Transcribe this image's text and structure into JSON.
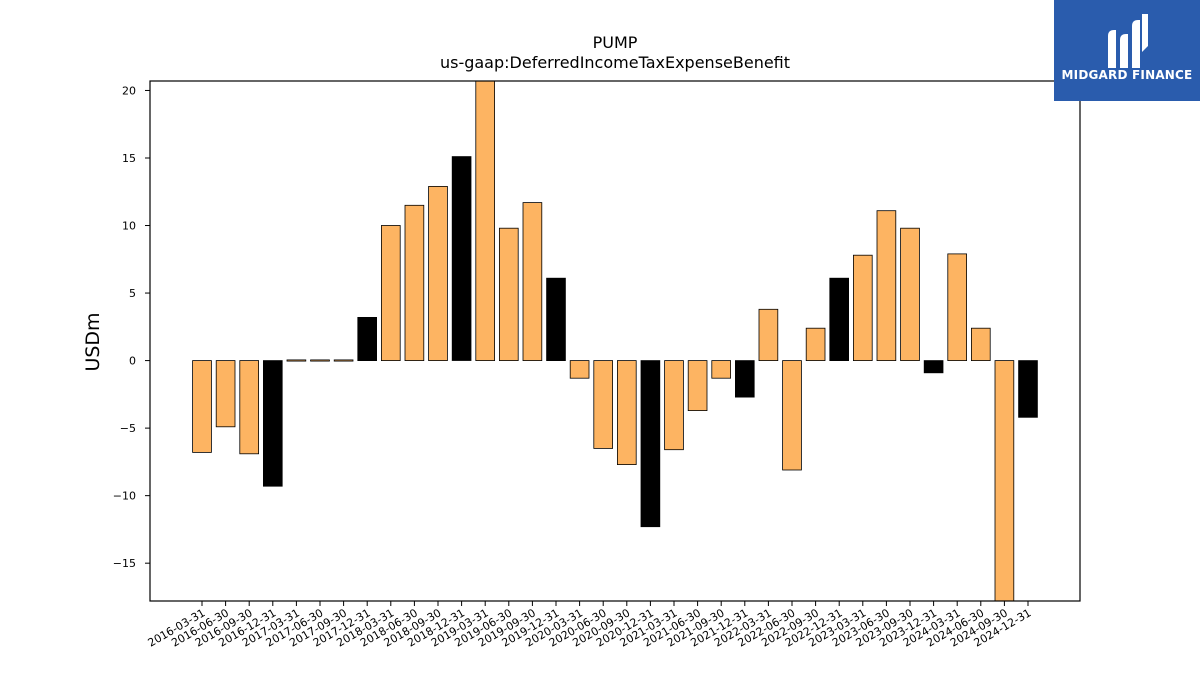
{
  "chart_data": {
    "type": "bar",
    "title": "PUMP",
    "subtitle": "us-gaap:DeferredIncomeTaxExpenseBenefit",
    "ylabel": "USDm",
    "xlabel": "",
    "ylim": [
      -17.8,
      20.7
    ],
    "yticks": [
      -15,
      -10,
      -5,
      0,
      5,
      10,
      15,
      20
    ],
    "categories": [
      "2016-03-31",
      "2016-06-30",
      "2016-09-30",
      "2016-12-31",
      "2017-03-31",
      "2017-06-30",
      "2017-09-30",
      "2017-12-31",
      "2018-03-31",
      "2018-06-30",
      "2018-09-30",
      "2018-12-31",
      "2019-03-31",
      "2019-06-30",
      "2019-09-30",
      "2019-12-31",
      "2020-03-31",
      "2020-06-30",
      "2020-09-30",
      "2020-12-31",
      "2021-03-31",
      "2021-06-30",
      "2021-09-30",
      "2021-12-31",
      "2022-03-31",
      "2022-06-30",
      "2022-09-30",
      "2022-12-31",
      "2023-03-31",
      "2023-06-30",
      "2023-09-30",
      "2023-12-31",
      "2024-03-31",
      "2024-06-30",
      "2024-09-30",
      "2024-12-31"
    ],
    "values": [
      -6.8,
      -4.9,
      -6.9,
      -9.3,
      0.05,
      0.05,
      0.05,
      3.2,
      10.0,
      11.5,
      12.9,
      15.1,
      20.7,
      9.8,
      11.7,
      6.1,
      -1.3,
      -6.5,
      -7.7,
      -12.3,
      -6.6,
      -3.7,
      -1.3,
      -2.7,
      3.8,
      -8.1,
      2.4,
      6.1,
      7.8,
      11.1,
      9.8,
      -0.9,
      7.9,
      2.4,
      -17.8,
      -4.2
    ],
    "annual": [
      false,
      false,
      false,
      true,
      false,
      false,
      false,
      true,
      false,
      false,
      false,
      true,
      false,
      false,
      false,
      true,
      false,
      false,
      false,
      true,
      false,
      false,
      false,
      true,
      false,
      false,
      false,
      true,
      false,
      false,
      false,
      true,
      false,
      false,
      false,
      true
    ],
    "colors": {
      "quarter": "#fdb462",
      "annual": "#000000",
      "edge": "#000000"
    },
    "grid": false,
    "legend": "none"
  },
  "logo": {
    "text": "MIDGARD FINANCE",
    "background": "#2a5cad"
  }
}
